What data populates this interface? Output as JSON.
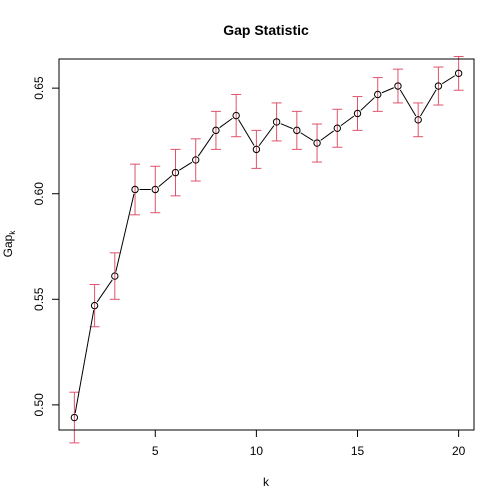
{
  "chart_data": {
    "type": "line",
    "title": "Gap Statistic",
    "xlabel": "k",
    "ylabel_main": "Gap",
    "ylabel_sub": "k",
    "xlim": [
      0.24,
      20.76
    ],
    "ylim": [
      0.4881,
      0.6638
    ],
    "x_ticks": [
      5,
      10,
      15,
      20
    ],
    "y_ticks": [
      0.5,
      0.55,
      0.6,
      0.65
    ],
    "x_tick_labels": [
      "5",
      "10",
      "15",
      "20"
    ],
    "y_tick_labels": [
      "0.50",
      "0.55",
      "0.60",
      "0.65"
    ],
    "grid": false,
    "line_color": "#000000",
    "errorbar_color": "#DF536B",
    "x": [
      1,
      2,
      3,
      4,
      5,
      6,
      7,
      8,
      9,
      10,
      11,
      12,
      13,
      14,
      15,
      16,
      17,
      18,
      19,
      20
    ],
    "gap": [
      0.494,
      0.547,
      0.561,
      0.602,
      0.602,
      0.61,
      0.616,
      0.63,
      0.637,
      0.621,
      0.634,
      0.63,
      0.624,
      0.631,
      0.638,
      0.647,
      0.651,
      0.635,
      0.651,
      0.657
    ],
    "se": [
      0.012,
      0.01,
      0.011,
      0.012,
      0.011,
      0.011,
      0.01,
      0.009,
      0.01,
      0.009,
      0.009,
      0.009,
      0.009,
      0.009,
      0.008,
      0.008,
      0.008,
      0.008,
      0.009,
      0.008
    ]
  }
}
